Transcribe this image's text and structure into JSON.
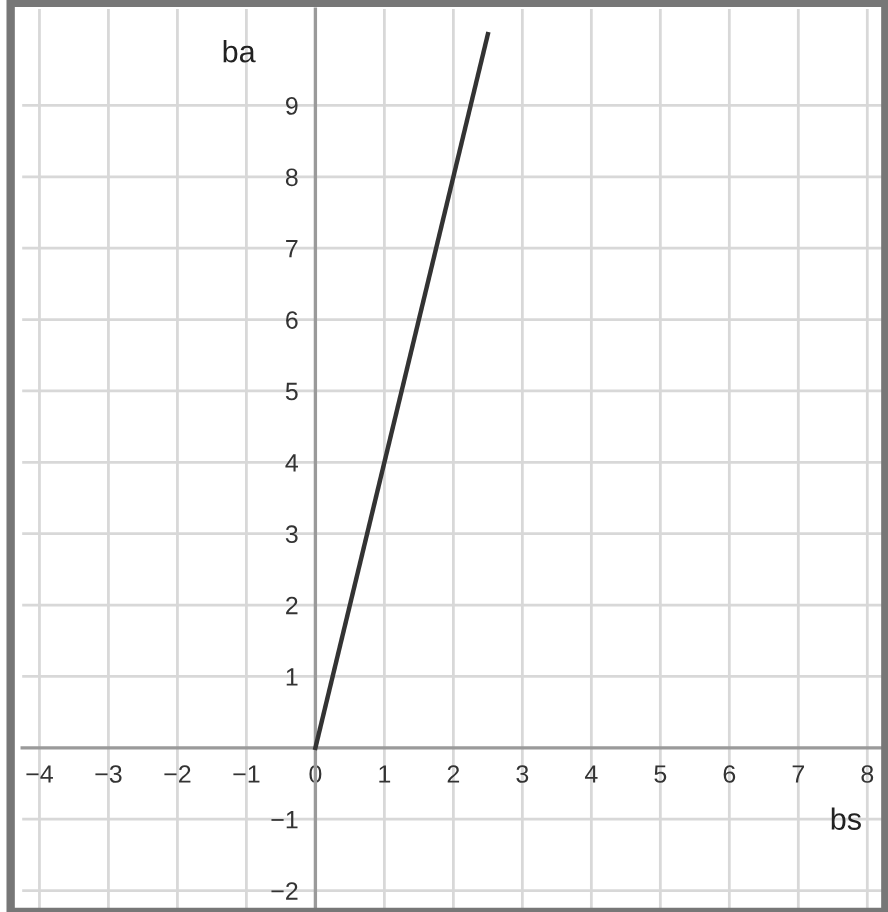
{
  "chart_data": {
    "type": "line",
    "xlabel": "bs",
    "ylabel": "ba",
    "x": [
      0,
      2.5
    ],
    "series": [
      {
        "color": "#333333",
        "values": [
          0,
          10
        ]
      }
    ],
    "xlim": [
      -4.25,
      8.3
    ],
    "ylim": [
      -2.3,
      10.35
    ],
    "xticks": [
      {
        "value": -4,
        "label": "−4"
      },
      {
        "value": -3,
        "label": "−3"
      },
      {
        "value": -2,
        "label": "−2"
      },
      {
        "value": -1,
        "label": "−1"
      },
      0,
      1,
      2,
      3,
      4,
      5,
      6,
      7,
      8
    ],
    "yticks": [
      {
        "value": -2,
        "label": "−2"
      },
      {
        "value": -1,
        "label": "−1"
      },
      1,
      2,
      3,
      4,
      5,
      6,
      7,
      8,
      9
    ],
    "grid": true,
    "marker": "none",
    "line_style": "solid"
  }
}
